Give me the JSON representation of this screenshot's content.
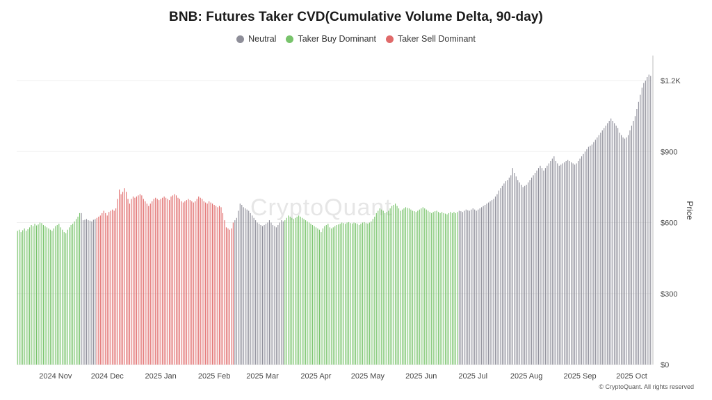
{
  "chart_data": {
    "type": "bar",
    "title": "BNB: Futures Taker CVD(Cumulative Volume Delta, 90-day)",
    "ylabel": "Price",
    "ylim": [
      0,
      1300
    ],
    "y_ticks": [
      {
        "value": 0,
        "label": "$0"
      },
      {
        "value": 300,
        "label": "$300"
      },
      {
        "value": 600,
        "label": "$600"
      },
      {
        "value": 900,
        "label": "$900"
      },
      {
        "value": 1200,
        "label": "$1.2K"
      }
    ],
    "x_ticks": [
      {
        "index": 22,
        "label": "2024 Nov"
      },
      {
        "index": 52,
        "label": "2024 Dec"
      },
      {
        "index": 83,
        "label": "2025 Jan"
      },
      {
        "index": 114,
        "label": "2025 Feb"
      },
      {
        "index": 142,
        "label": "2025 Mar"
      },
      {
        "index": 173,
        "label": "2025 Apr"
      },
      {
        "index": 203,
        "label": "2025 May"
      },
      {
        "index": 234,
        "label": "2025 Jun"
      },
      {
        "index": 264,
        "label": "2025 Jul"
      },
      {
        "index": 295,
        "label": "2025 Aug"
      },
      {
        "index": 326,
        "label": "2025 Sep"
      },
      {
        "index": 356,
        "label": "2025 Oct"
      }
    ],
    "legend_position": "top-center",
    "grid": true,
    "series": [
      {
        "name": "Neutral",
        "color": "#8e8e99"
      },
      {
        "name": "Taker Buy Dominant",
        "color": "#78c36b"
      },
      {
        "name": "Taker Sell Dominant",
        "color": "#e06a6a"
      }
    ],
    "segments": [
      {
        "from": 0,
        "to": 36,
        "series": 1
      },
      {
        "from": 37,
        "to": 45,
        "series": 0
      },
      {
        "from": 46,
        "to": 125,
        "series": 2
      },
      {
        "from": 126,
        "to": 154,
        "series": 0
      },
      {
        "from": 155,
        "to": 255,
        "series": 1
      },
      {
        "from": 256,
        "to": 363,
        "series": 0
      }
    ],
    "values": [
      565,
      570,
      560,
      568,
      575,
      565,
      572,
      580,
      590,
      585,
      595,
      588,
      592,
      600,
      598,
      590,
      585,
      580,
      575,
      570,
      565,
      575,
      585,
      590,
      595,
      580,
      570,
      560,
      555,
      570,
      580,
      590,
      595,
      605,
      615,
      625,
      640,
      640,
      610,
      612,
      615,
      610,
      608,
      605,
      612,
      615,
      620,
      625,
      630,
      640,
      650,
      640,
      630,
      645,
      650,
      655,
      650,
      660,
      700,
      740,
      720,
      730,
      745,
      730,
      700,
      680,
      700,
      710,
      705,
      710,
      715,
      720,
      715,
      700,
      690,
      680,
      670,
      680,
      690,
      700,
      705,
      700,
      695,
      700,
      705,
      710,
      705,
      700,
      695,
      710,
      715,
      720,
      715,
      705,
      700,
      690,
      685,
      690,
      695,
      700,
      695,
      690,
      685,
      690,
      700,
      710,
      705,
      700,
      690,
      685,
      680,
      690,
      685,
      680,
      675,
      670,
      665,
      670,
      665,
      640,
      610,
      580,
      575,
      570,
      575,
      600,
      610,
      620,
      650,
      680,
      675,
      665,
      660,
      655,
      650,
      640,
      630,
      620,
      610,
      600,
      595,
      590,
      585,
      590,
      595,
      600,
      610,
      600,
      590,
      585,
      580,
      590,
      600,
      610,
      605,
      610,
      620,
      630,
      625,
      620,
      615,
      620,
      625,
      630,
      625,
      620,
      615,
      610,
      605,
      600,
      595,
      590,
      585,
      580,
      575,
      570,
      560,
      575,
      585,
      590,
      595,
      580,
      575,
      580,
      585,
      590,
      592,
      595,
      600,
      598,
      595,
      600,
      602,
      598,
      596,
      600,
      598,
      595,
      590,
      595,
      600,
      602,
      598,
      596,
      600,
      605,
      615,
      625,
      640,
      650,
      660,
      655,
      650,
      640,
      645,
      650,
      660,
      670,
      675,
      680,
      670,
      660,
      650,
      655,
      660,
      665,
      662,
      660,
      655,
      650,
      648,
      645,
      650,
      655,
      660,
      665,
      660,
      655,
      650,
      645,
      640,
      645,
      648,
      650,
      645,
      640,
      645,
      640,
      638,
      635,
      640,
      645,
      640,
      645,
      640,
      645,
      650,
      648,
      645,
      650,
      655,
      652,
      650,
      655,
      660,
      655,
      650,
      655,
      660,
      665,
      670,
      675,
      680,
      685,
      690,
      695,
      700,
      710,
      720,
      735,
      745,
      755,
      765,
      775,
      780,
      790,
      800,
      830,
      810,
      795,
      780,
      770,
      760,
      750,
      755,
      760,
      770,
      780,
      790,
      800,
      810,
      820,
      830,
      840,
      830,
      820,
      830,
      840,
      850,
      860,
      870,
      880,
      860,
      850,
      840,
      845,
      850,
      855,
      860,
      865,
      860,
      855,
      850,
      845,
      850,
      860,
      870,
      880,
      890,
      900,
      910,
      920,
      925,
      930,
      940,
      950,
      960,
      970,
      980,
      990,
      1000,
      1010,
      1020,
      1030,
      1040,
      1030,
      1020,
      1010,
      1000,
      980,
      970,
      960,
      955,
      960,
      970,
      990,
      1010,
      1030,
      1050,
      1080,
      1110,
      1140,
      1170,
      1190,
      1200,
      1215,
      1225,
      1220
    ]
  },
  "watermark": "CryptoQuant",
  "copyright": "© CryptoQuant. All rights reserved"
}
